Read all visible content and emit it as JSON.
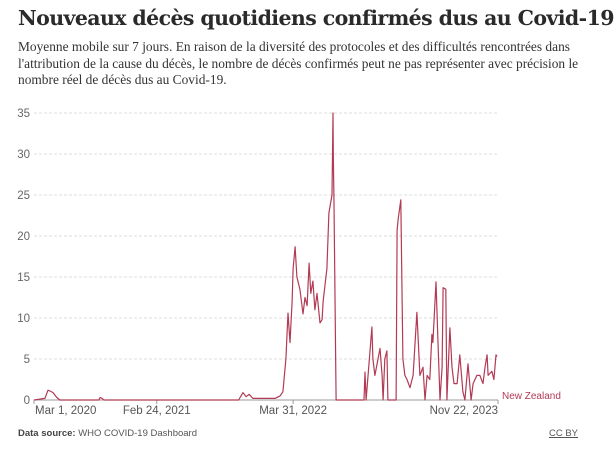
{
  "chart_data": {
    "type": "line",
    "title": "Nouveaux décès quotidiens confirmés dus au Covid-19",
    "subtitle": "Moyenne mobile sur 7 jours. En raison de la diversité des protocoles et des difficultés rencontrées dans l'attribution de la cause du décès, le nombre de décès confirmés peut ne pas représenter avec précision le nombre réel de décès dus au Covid-19.",
    "xlabel": "",
    "ylabel": "",
    "ylim": [
      0,
      35
    ],
    "xlim": [
      0,
      1361
    ],
    "y_ticks": [
      "0",
      "5",
      "10",
      "15",
      "20",
      "25",
      "30",
      "35"
    ],
    "y_tick_values": [
      0,
      5,
      10,
      15,
      20,
      25,
      30,
      35
    ],
    "x_ticks": [
      {
        "label": "Mar 1, 2020",
        "x": 0
      },
      {
        "label": "Feb 24, 2021",
        "x": 360
      },
      {
        "label": "Mar 31, 2022",
        "x": 760
      },
      {
        "label": "Nov 22, 2023",
        "x": 1361
      }
    ],
    "grid": true,
    "series": [
      {
        "name": "New Zealand",
        "color": "#b23a55",
        "x": [
          0,
          32,
          41,
          47,
          56,
          67,
          76,
          190,
          194,
          200,
          205,
          600,
          613,
          622,
          631,
          642,
          707,
          722,
          730,
          739,
          745,
          751,
          757,
          760,
          766,
          771,
          780,
          789,
          795,
          801,
          807,
          812,
          818,
          824,
          830,
          839,
          845,
          848,
          859,
          865,
          874,
          877,
          878,
          880,
          886,
          968,
          971,
          974,
          991,
          994,
          1000,
          1009,
          1015,
          1021,
          1024,
          1029,
          1035,
          1038,
          1062,
          1065,
          1068,
          1076,
          1082,
          1088,
          1094,
          1103,
          1112,
          1123,
          1132,
          1141,
          1147,
          1153,
          1161,
          1167,
          1170,
          1179,
          1185,
          1191,
          1197,
          1200,
          1208,
          1211,
          1220,
          1226,
          1232,
          1241,
          1249,
          1258,
          1264,
          1273,
          1282,
          1288,
          1299,
          1308,
          1317,
          1323,
          1329,
          1332,
          1343,
          1349,
          1355,
          1358
        ],
        "values": [
          0,
          0.2,
          1.2,
          1.1,
          0.9,
          0.3,
          0,
          0,
          0.3,
          0.2,
          0,
          0,
          0.9,
          0.4,
          0.7,
          0.2,
          0.2,
          0.5,
          1,
          5,
          10.6,
          7,
          12,
          16,
          18.7,
          15,
          13.5,
          10.5,
          12.5,
          11.5,
          16.7,
          13,
          14.5,
          11,
          13,
          9.4,
          9.8,
          12,
          16,
          22.8,
          25,
          35,
          30,
          24,
          0,
          0,
          3.4,
          0,
          8.9,
          5,
          3,
          5,
          6.3,
          3,
          0,
          5,
          6,
          0,
          0,
          20.7,
          22,
          24.4,
          5,
          3,
          2.5,
          1.5,
          3,
          10.7,
          3,
          4,
          0,
          3,
          2.5,
          8,
          7,
          14.4,
          7,
          0,
          4,
          13.7,
          13.5,
          0,
          8.8,
          4,
          2,
          2,
          5.5,
          1,
          0,
          4.4,
          0,
          2,
          3,
          3,
          2,
          4,
          5.5,
          3,
          3.5,
          2.5,
          5.5,
          5.3
        ]
      }
    ],
    "series_label": "New Zealand",
    "legend": "right-end-of-line"
  },
  "footer": {
    "source_label": "Data source:",
    "source_value": "WHO COVID-19 Dashboard",
    "license": "CC BY"
  }
}
